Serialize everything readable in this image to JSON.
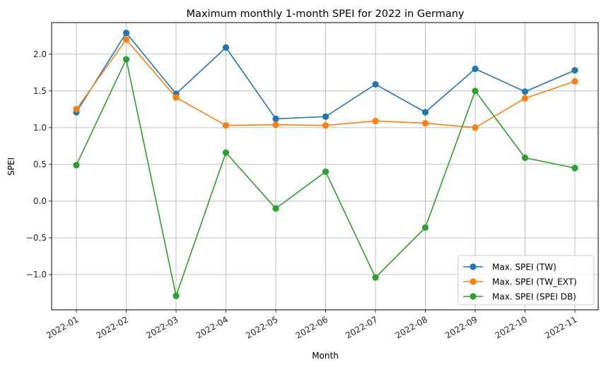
{
  "chart_data": {
    "type": "line",
    "title": "Maximum monthly 1-month SPEI for 2022 in Germany",
    "xlabel": "Month",
    "ylabel": "SPEI",
    "categories": [
      "2022-01",
      "2022-02",
      "2022-03",
      "2022-04",
      "2022-05",
      "2022-06",
      "2022-07",
      "2022-08",
      "2022-09",
      "2022-10",
      "2022-11"
    ],
    "yticks": [
      "2.0",
      "1.5",
      "1.0",
      "0.5",
      "0.0",
      "−0.5",
      "−1.0"
    ],
    "ytick_values": [
      2.0,
      1.5,
      1.0,
      0.5,
      0.0,
      -0.5,
      -1.0
    ],
    "ylim": [
      -1.48,
      2.43
    ],
    "grid": true,
    "legend_position": "lower-right",
    "series": [
      {
        "name": "Max. SPEI (TW)",
        "color": "#1f77b4",
        "values": [
          1.21,
          2.29,
          1.46,
          2.09,
          1.12,
          1.15,
          1.59,
          1.21,
          1.8,
          1.49,
          1.78
        ]
      },
      {
        "name": "Max. SPEI (TW_EXT)",
        "color": "#ff7f0e",
        "values": [
          1.25,
          2.2,
          1.41,
          1.03,
          1.04,
          1.03,
          1.09,
          1.06,
          1.0,
          1.4,
          1.63
        ]
      },
      {
        "name": "Max. SPEI (SPEI DB)",
        "color": "#2ca02c",
        "values": [
          0.49,
          1.93,
          -1.29,
          0.66,
          -0.1,
          0.4,
          -1.04,
          -0.36,
          1.5,
          0.59,
          0.45
        ]
      }
    ]
  }
}
